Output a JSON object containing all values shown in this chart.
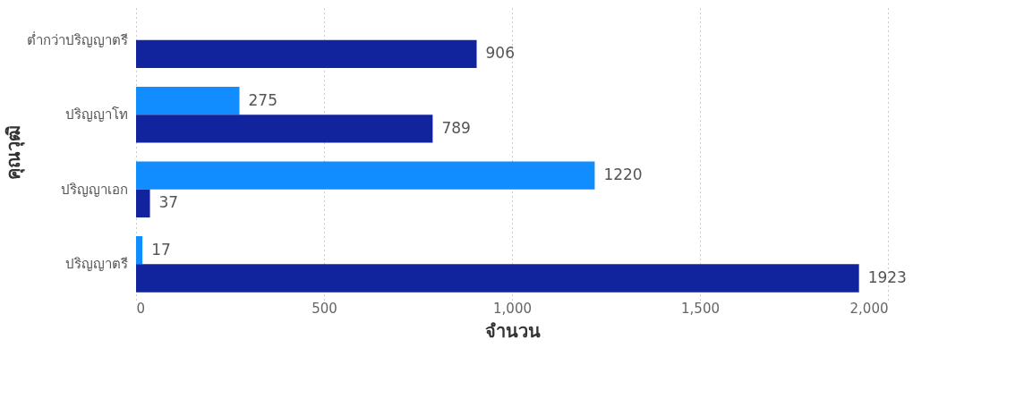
{
  "chart_data": {
    "type": "bar",
    "orientation": "horizontal",
    "xlabel": "จำนวน",
    "ylabel": "คุณวุฒิ",
    "categories": [
      "ต่ำกว่าปริญญาตรี",
      "ปริญญาโท",
      "ปริญญาเอก",
      "ปริญญาตรี"
    ],
    "series": [
      {
        "color": "#118dff",
        "values": [
          null,
          275,
          1220,
          17
        ]
      },
      {
        "color": "#12239e",
        "values": [
          906,
          789,
          37,
          1923
        ]
      }
    ],
    "xlim": [
      0,
      2000
    ],
    "xticks": [
      0,
      500,
      {
        "value": 1000,
        "label": "1,000"
      },
      {
        "value": 1500,
        "label": "1,500"
      },
      {
        "value": 2000,
        "label": "2,000"
      }
    ],
    "grid": "x",
    "data_labels": true,
    "legend": false
  }
}
